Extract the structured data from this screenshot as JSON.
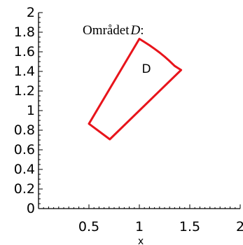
{
  "chart_data": {
    "type": "line",
    "title": "Området",
    "title_italic": "D",
    "title_suffix": ":",
    "xlabel": "x",
    "ylabel": "",
    "xlim": [
      0,
      2
    ],
    "ylim": [
      0,
      2
    ],
    "x_major_ticks": [
      {
        "value": 0.5,
        "label": "0.5"
      },
      {
        "value": 1,
        "label": "1"
      },
      {
        "value": 1.5,
        "label": "1.5"
      },
      {
        "value": 2,
        "label": "2"
      }
    ],
    "y_major_ticks": [
      {
        "value": 0,
        "label": "0"
      },
      {
        "value": 0.2,
        "label": "0.2"
      },
      {
        "value": 0.4,
        "label": "0.4"
      },
      {
        "value": 0.6,
        "label": "0.6"
      },
      {
        "value": 0.8,
        "label": "0.8"
      },
      {
        "value": 1,
        "label": "1"
      },
      {
        "value": 1.2,
        "label": "1.2"
      },
      {
        "value": 1.4,
        "label": "1.4"
      },
      {
        "value": 1.6,
        "label": "1.6"
      },
      {
        "value": 1.8,
        "label": "1.8"
      },
      {
        "value": 2,
        "label": "2"
      }
    ],
    "grid": false,
    "series": [
      {
        "color": "#e8141b",
        "closed": true,
        "x": [
          0.5,
          1.0,
          1.05,
          1.1,
          1.15,
          1.2,
          1.25,
          1.3,
          1.35,
          1.414,
          0.707
        ],
        "y": [
          0.866,
          1.732,
          1.7,
          1.667,
          1.631,
          1.593,
          1.551,
          1.505,
          1.456,
          1.414,
          0.707
        ]
      }
    ],
    "annotations": [
      {
        "text": "D",
        "x": 1.07,
        "y": 1.43
      }
    ]
  }
}
